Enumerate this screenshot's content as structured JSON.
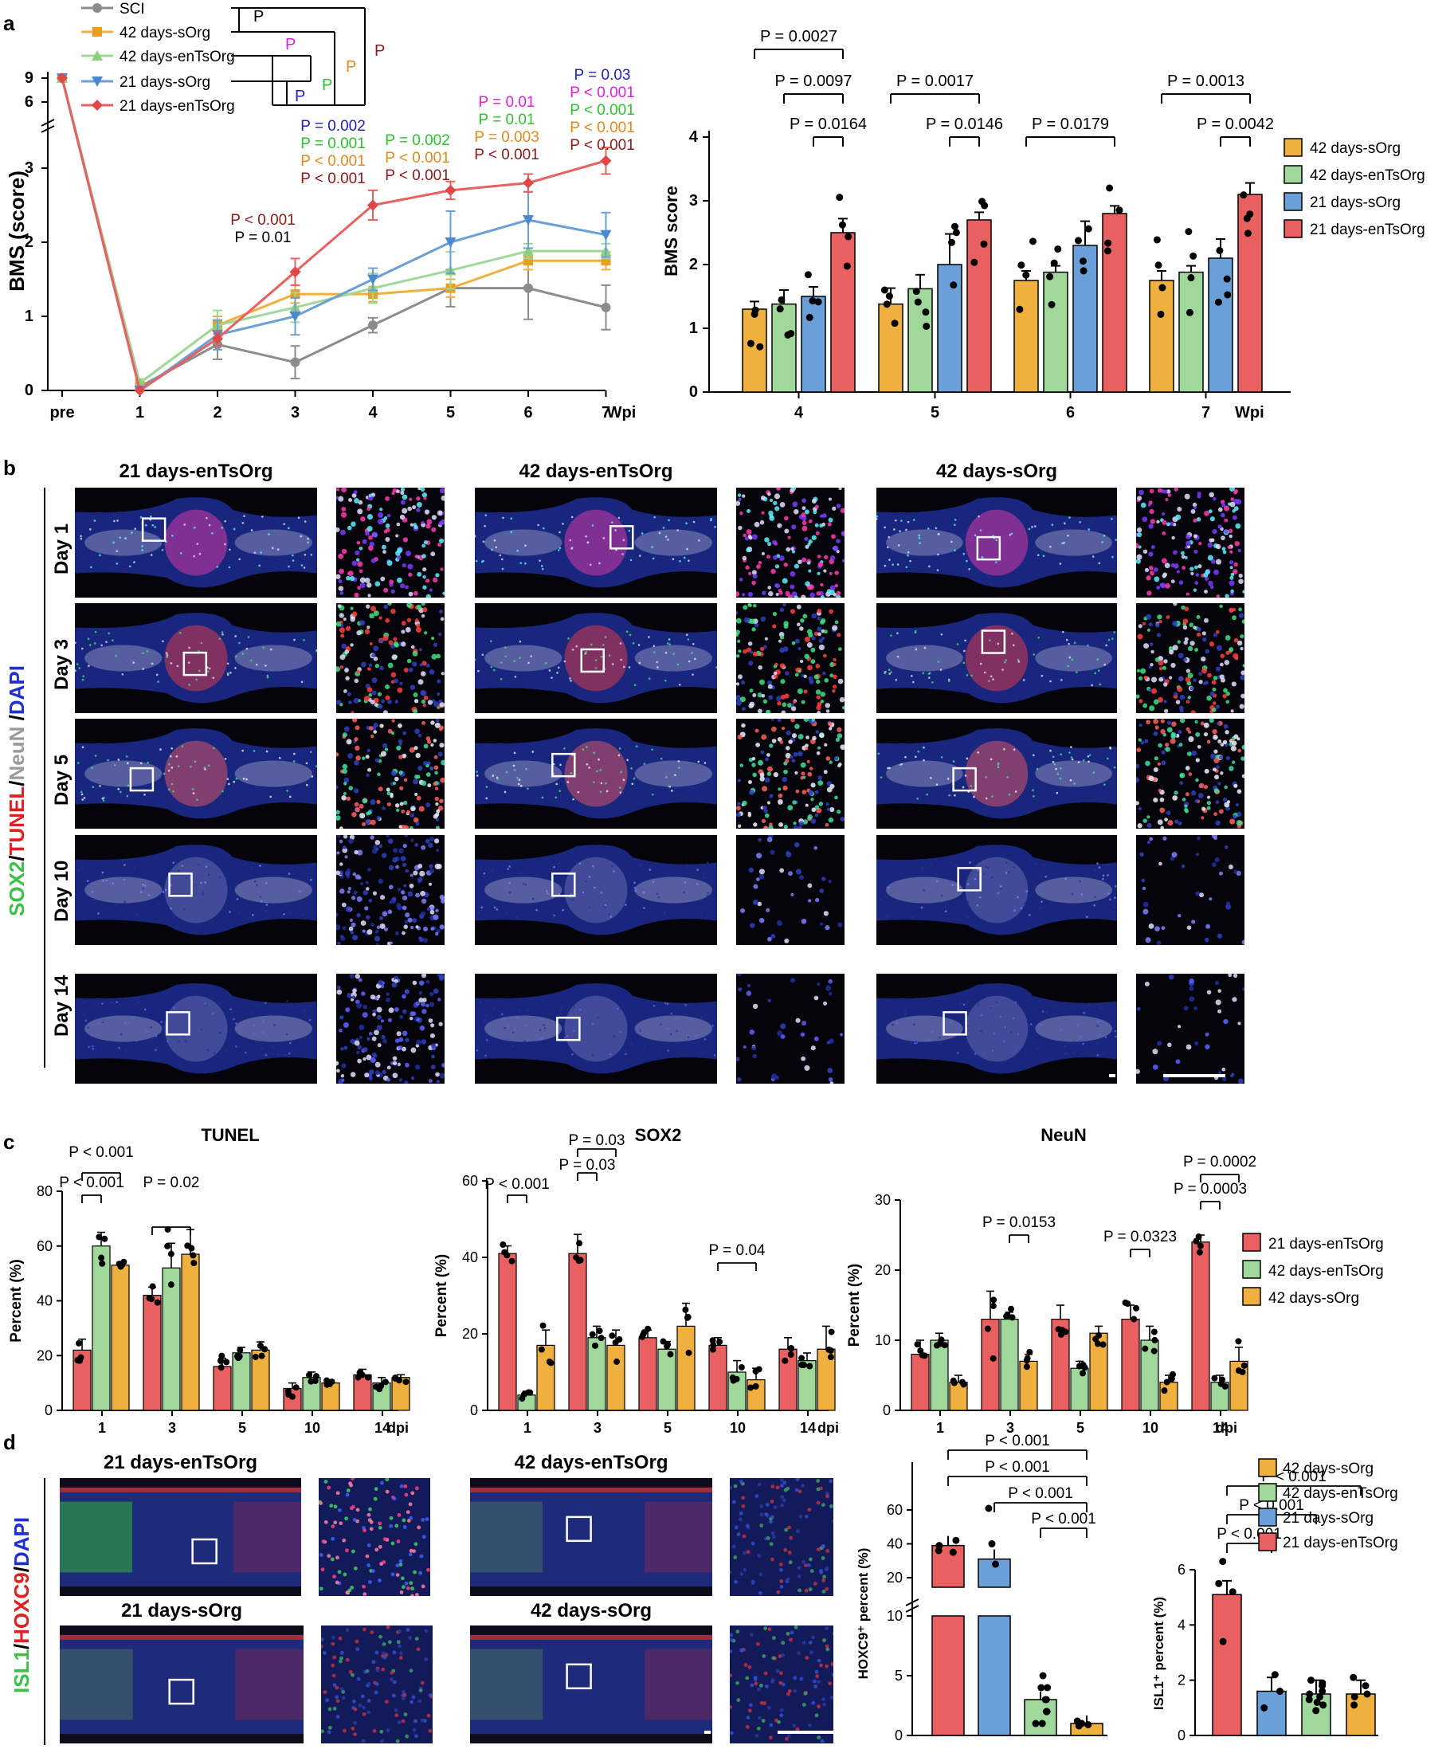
{
  "panel_labels": {
    "a": "a",
    "b": "b",
    "c": "c",
    "d": "d"
  },
  "colors": {
    "sci": "#8c8c8c",
    "sorg42": "#f0b040",
    "entsorg42": "#9fd89a",
    "sorg21": "#6a9fd8",
    "entsorg21": "#e86060",
    "sci_legend": "#7f7f7f"
  },
  "panel_a": {
    "legend": [
      "SCI",
      "42 days-sOrg",
      "42 days-enTsOrg",
      "21 days-sOrg",
      "21 days-enTsOrg"
    ],
    "bracket_labels": [
      "P",
      "P",
      "P",
      "P",
      "P",
      "P"
    ],
    "annotations": [
      {
        "wpi": "3",
        "lines": [
          {
            "t": "P < 0.001",
            "c": "#8b1a1a"
          },
          {
            "t": "P = 0.01",
            "c": "#000000"
          }
        ]
      },
      {
        "wpi": "4",
        "lines": [
          {
            "t": "P = 0.002",
            "c": "#2020c0"
          },
          {
            "t": "P = 0.001",
            "c": "#30c030"
          },
          {
            "t": "P < 0.001",
            "c": "#e08a20"
          },
          {
            "t": "P < 0.001",
            "c": "#8b1a1a"
          }
        ]
      },
      {
        "wpi": "5",
        "lines": [
          {
            "t": "P = 0.002",
            "c": "#30c030"
          },
          {
            "t": "P < 0.001",
            "c": "#e08a20"
          },
          {
            "t": "P < 0.001",
            "c": "#8b1a1a"
          }
        ]
      },
      {
        "wpi": "6",
        "lines": [
          {
            "t": "P = 0.01",
            "c": "#e020e0"
          },
          {
            "t": "P = 0.01",
            "c": "#30c030"
          },
          {
            "t": "P = 0.003",
            "c": "#e08a20"
          },
          {
            "t": "P < 0.001",
            "c": "#8b1a1a"
          }
        ]
      },
      {
        "wpi": "7",
        "lines": [
          {
            "t": "P = 0.03",
            "c": "#2020c0"
          },
          {
            "t": "P < 0.001",
            "c": "#e020e0"
          },
          {
            "t": "P < 0.001",
            "c": "#30c030"
          },
          {
            "t": "P < 0.001",
            "c": "#e08a20"
          },
          {
            "t": "P < 0.001",
            "c": "#8b1a1a"
          }
        ]
      }
    ],
    "right_legend": [
      "42 days-sOrg",
      "42 days-enTsOrg",
      "21 days-sOrg",
      "21 days-enTsOrg"
    ],
    "right_p": [
      {
        "t": "P = 0.0027"
      },
      {
        "t": "P = 0.0097"
      },
      {
        "t": "P = 0.0164"
      },
      {
        "t": "P = 0.0017"
      },
      {
        "t": "P = 0.0146"
      },
      {
        "t": "P = 0.0179"
      },
      {
        "t": "P = 0.0013"
      },
      {
        "t": "P = 0.0042"
      }
    ]
  },
  "panel_b": {
    "columns": [
      "21 days-enTsOrg",
      "42 days-enTsOrg",
      "42 days-sOrg"
    ],
    "rows": [
      "Day 1",
      "Day 3",
      "Day 5",
      "Day 10",
      "Day 14"
    ],
    "stain_label": [
      {
        "t": "SOX2",
        "c": "#3cc04a"
      },
      {
        "t": "/",
        "c": "#000000"
      },
      {
        "t": "TUNEL",
        "c": "#e02020"
      },
      {
        "t": "/",
        "c": "#000000"
      },
      {
        "t": "NeuN",
        "c": "#9a9a9a"
      },
      {
        "t": " /",
        "c": "#000000"
      },
      {
        "t": "DAPI",
        "c": "#2030d0"
      }
    ]
  },
  "panel_c": {
    "legend": [
      "21 days-enTsOrg",
      "42 days-enTsOrg",
      "42 days-sOrg"
    ],
    "p_tunel": [
      "P < 0.001",
      "P < 0.001",
      "P = 0.02"
    ],
    "p_sox2": [
      "P < 0.001",
      "P = 0.03",
      "P = 0.03",
      "P = 0.04"
    ],
    "p_neun": [
      "P = 0.0153",
      "P = 0.0323",
      "P = 0.0003",
      "P = 0.0002"
    ]
  },
  "panel_d": {
    "image_titles": [
      "21 days-enTsOrg",
      "42 days-enTsOrg",
      "21 days-sOrg",
      "42 days-sOrg"
    ],
    "stain_label": [
      {
        "t": "ISL1",
        "c": "#3cc04a"
      },
      {
        "t": "/",
        "c": "#000000"
      },
      {
        "t": "HOXC9",
        "c": "#e02020"
      },
      {
        "t": "/",
        "c": "#000000"
      },
      {
        "t": "DAPI",
        "c": "#2030d0"
      }
    ],
    "legend": [
      "42 days-sOrg",
      "42 days-enTsOrg",
      "21 days-sOrg",
      "21 days-enTsOrg"
    ],
    "p_hoxc9": [
      "P < 0.001",
      "P < 0.001",
      "P < 0.001",
      "P < 0.001"
    ],
    "p_isl1": [
      "P < 0.001",
      "P < 0.001",
      "P < 0.001"
    ]
  },
  "chart_data": [
    {
      "type": "line",
      "title": "",
      "xlabel": "Wpi",
      "ylabel": "BMS (score)",
      "x": [
        "pre",
        "1",
        "2",
        "3",
        "4",
        "5",
        "6",
        "7"
      ],
      "y_ticks": [
        "0",
        "1",
        "2",
        "3",
        "6",
        "9"
      ],
      "series": [
        {
          "name": "SCI",
          "values": [
            9,
            0.05,
            0.62,
            0.38,
            0.88,
            1.38,
            1.38,
            1.12
          ],
          "err": [
            0,
            0.03,
            0.2,
            0.22,
            0.1,
            0.25,
            0.42,
            0.3
          ]
        },
        {
          "name": "42 days-sOrg",
          "values": [
            9,
            0.1,
            0.88,
            1.3,
            1.3,
            1.38,
            1.75,
            1.75
          ],
          "err": [
            0,
            0.05,
            0.12,
            0.12,
            0.1,
            0.12,
            0.12,
            0.12
          ]
        },
        {
          "name": "42 days-enTsOrg",
          "values": [
            9,
            0.1,
            0.88,
            1.12,
            1.38,
            1.62,
            1.88,
            1.88
          ],
          "err": [
            0,
            0.05,
            0.2,
            0.2,
            0.2,
            0.25,
            0.1,
            0.1
          ]
        },
        {
          "name": "21 days-sOrg",
          "values": [
            9,
            0.0,
            0.75,
            1.0,
            1.5,
            2.0,
            2.3,
            2.1
          ],
          "err": [
            0,
            0.0,
            0.2,
            0.25,
            0.15,
            0.42,
            0.38,
            0.3
          ]
        },
        {
          "name": "21 days-enTsOrg",
          "values": [
            9,
            0.0,
            0.7,
            1.6,
            2.5,
            2.7,
            2.8,
            3.1
          ],
          "err": [
            0,
            0.0,
            0.1,
            0.18,
            0.2,
            0.12,
            0.12,
            0.18
          ]
        }
      ]
    },
    {
      "type": "bar",
      "title": "",
      "xlabel": "Wpi",
      "ylabel": "BMS score",
      "categories": [
        "4",
        "5",
        "6",
        "7"
      ],
      "ylim": [
        0,
        4
      ],
      "y_ticks": [
        "0",
        "1",
        "2",
        "3",
        "4"
      ],
      "series": [
        {
          "name": "42 days-sOrg",
          "values": [
            1.3,
            1.38,
            1.75,
            1.75
          ],
          "err": [
            0.12,
            0.25,
            0.15,
            0.15
          ]
        },
        {
          "name": "42 days-enTsOrg",
          "values": [
            1.38,
            1.62,
            1.88,
            1.88
          ],
          "err": [
            0.22,
            0.22,
            0.1,
            0.1
          ]
        },
        {
          "name": "21 days-sOrg",
          "values": [
            1.5,
            2.0,
            2.3,
            2.1
          ],
          "err": [
            0.15,
            0.48,
            0.38,
            0.3
          ]
        },
        {
          "name": "21 days-enTsOrg",
          "values": [
            2.5,
            2.7,
            2.8,
            3.1
          ],
          "err": [
            0.22,
            0.12,
            0.12,
            0.18
          ]
        }
      ]
    },
    {
      "type": "bar",
      "title": "TUNEL",
      "xlabel": "dpi",
      "ylabel": "Percent (%)",
      "categories": [
        "1",
        "3",
        "5",
        "10",
        "14"
      ],
      "ylim": [
        0,
        80
      ],
      "y_ticks": [
        "0",
        "20",
        "40",
        "60",
        "80"
      ],
      "series": [
        {
          "name": "21 days-enTsOrg",
          "values": [
            22,
            42,
            16,
            8,
            13
          ],
          "err": [
            4,
            3,
            3,
            2,
            2
          ]
        },
        {
          "name": "42 days-enTsOrg",
          "values": [
            60,
            52,
            21,
            12,
            10
          ],
          "err": [
            5,
            9,
            2,
            2,
            2
          ]
        },
        {
          "name": "42 days-sOrg",
          "values": [
            53,
            57,
            22,
            10,
            12
          ],
          "err": [
            1,
            9,
            3,
            1,
            1
          ]
        }
      ]
    },
    {
      "type": "bar",
      "title": "SOX2",
      "xlabel": "dpi",
      "ylabel": "Percent (%)",
      "categories": [
        "1",
        "3",
        "5",
        "10",
        "14"
      ],
      "ylim": [
        0,
        60
      ],
      "y_ticks": [
        "0",
        "20",
        "40",
        "60"
      ],
      "series": [
        {
          "name": "21 days-enTsOrg",
          "values": [
            41,
            41,
            19,
            17,
            16
          ],
          "err": [
            2,
            5,
            2,
            2,
            3
          ]
        },
        {
          "name": "42 days-enTsOrg",
          "values": [
            4,
            19,
            16,
            10,
            13
          ],
          "err": [
            1,
            3,
            2,
            3,
            2
          ]
        },
        {
          "name": "42 days-sOrg",
          "values": [
            17,
            17,
            22,
            8,
            16
          ],
          "err": [
            4,
            4,
            6,
            3,
            6
          ]
        }
      ]
    },
    {
      "type": "bar",
      "title": "NeuN",
      "xlabel": "dpi",
      "ylabel": "Percent (%)",
      "categories": [
        "1",
        "3",
        "5",
        "10",
        "14"
      ],
      "ylim": [
        0,
        30
      ],
      "y_ticks": [
        "0",
        "10",
        "20",
        "30"
      ],
      "series": [
        {
          "name": "21 days-enTsOrg",
          "values": [
            8,
            13,
            13,
            13,
            24
          ],
          "err": [
            2,
            4,
            2,
            2,
            1
          ]
        },
        {
          "name": "42 days-enTsOrg",
          "values": [
            10,
            13,
            6,
            10,
            4
          ],
          "err": [
            1,
            1,
            1,
            2,
            1
          ]
        },
        {
          "name": "42 days-sOrg",
          "values": [
            4,
            7,
            11,
            4,
            7
          ],
          "err": [
            1,
            1,
            1,
            1,
            2
          ]
        }
      ]
    },
    {
      "type": "bar",
      "title": "",
      "xlabel": "",
      "ylabel": "HOXC9⁺ percent (%)",
      "categories": [
        "42 days-sOrg",
        "42 days-enTsOrg",
        "21 days-sOrg",
        "21 days-enTsOrg"
      ],
      "y_ticks": [
        "0",
        "5",
        "10",
        "20",
        "40",
        "60"
      ],
      "values": [
        39,
        31,
        3,
        1
      ]
    },
    {
      "type": "bar",
      "title": "",
      "xlabel": "",
      "ylabel": "ISL1⁺ percent (%)",
      "categories": [
        "21 days-enTsOrg",
        "21 days-sOrg",
        "42 days-enTsOrg",
        "42 days-sOrg"
      ],
      "ylim": [
        0,
        6
      ],
      "y_ticks": [
        "0",
        "2",
        "4",
        "6"
      ],
      "values": [
        5.1,
        1.6,
        1.5,
        1.5
      ]
    }
  ]
}
